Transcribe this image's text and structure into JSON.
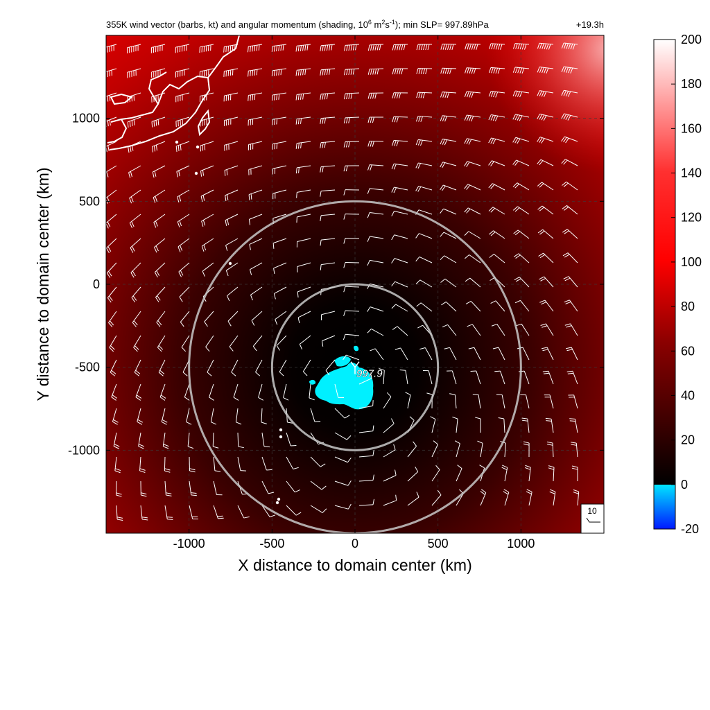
{
  "chart_data": {
    "type": "heatmap",
    "title": "355K wind vector (barbs, kt) and angular momentum (shading, 10⁶ m²s⁻¹); min SLP= 997.89hPa",
    "title_parts": {
      "main": "355K wind vector (barbs, kt) and angular momentum (shading, 10",
      "exp1": "6",
      "mid1": " m",
      "exp2": "2",
      "mid2": "s",
      "exp3": "-1",
      "rest": "); min SLP= 997.89hPa",
      "time": "+19.3h"
    },
    "xlabel": "X distance to domain center (km)",
    "ylabel": "Y distance to domain center (km)",
    "xlim": [
      -1500,
      1500
    ],
    "ylim": [
      -1500,
      1500
    ],
    "xticks": [
      -1000,
      -500,
      0,
      500,
      1000
    ],
    "yticks": [
      1000,
      500,
      0,
      -500,
      -1000
    ],
    "tick_labels_x": [
      "-1000",
      "-500",
      "0",
      "500",
      "1000"
    ],
    "tick_labels_y": [
      "1000",
      "500",
      "0",
      "-500",
      "-1000"
    ],
    "grid": true,
    "grid_style": "dashed",
    "colorbar": {
      "range": [
        -20,
        200
      ],
      "ticks": [
        200,
        180,
        160,
        140,
        120,
        100,
        80,
        60,
        40,
        20,
        0,
        -20
      ],
      "tick_labels": [
        "200",
        "180",
        "160",
        "140",
        "120",
        "100",
        "80",
        "60",
        "40",
        "20",
        "0",
        "-20"
      ],
      "colors": {
        "negative_low": "#0018ff",
        "negative_high": "#00e6ff",
        "zero": "#000000",
        "mid": "#ff0000",
        "high": "#ffffff"
      }
    },
    "storm_center": {
      "x": 0,
      "y": -500
    },
    "min_slp_label": "997.9",
    "range_rings_km": [
      500,
      1000
    ],
    "ring_color": "#c8c8c8",
    "coastline_color": "#ffffff",
    "barb_color": "#ffffff",
    "negative_region_color": "#00f0ff",
    "reference_barb_label": "10"
  }
}
